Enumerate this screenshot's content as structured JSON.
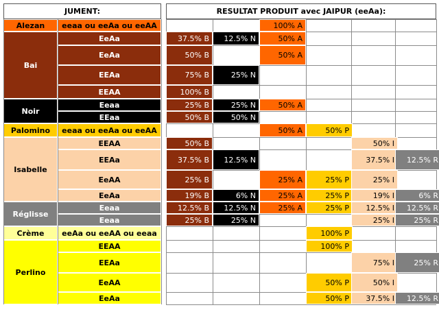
{
  "headers": {
    "left": "JUMENT:",
    "right": "RESULTAT PRODUIT avec JAIPUR (eeAa):"
  },
  "colors": {
    "alezan": "#ff6600",
    "bai": "#8b2d0c",
    "noir": "#000000",
    "palomino": "#ffcc00",
    "isabelle": "#fcd2a8",
    "reglisse": "#808080",
    "creme": "#ffff99",
    "perlino": "#ffff00",
    "pct_A": "#ff6600",
    "pct_B": "#8b2d0c",
    "pct_N": "#000000",
    "pct_P": "#ffcc00",
    "pct_I": "#fcd2a8",
    "pct_R": "#808080"
  },
  "rows": [
    {
      "name": "Alezan",
      "genotype": "eeaa ou eeAa ou eeAA",
      "group": "alezan",
      "result": [
        "",
        "",
        "100% A",
        "",
        "",
        ""
      ]
    },
    {
      "name": "Bai",
      "genotype": "EeAa",
      "group": "bai",
      "result": [
        "37.5% B",
        "12.5% N",
        "50% A",
        "",
        "",
        ""
      ]
    },
    {
      "name": "",
      "genotype": "EeAa",
      "group": "bai",
      "result": [
        "50% B",
        "",
        "50% A",
        "",
        "",
        ""
      ]
    },
    {
      "name": "",
      "genotype": "EEAa",
      "group": "bai",
      "result": [
        "75% B",
        "25% N",
        "",
        "",
        "",
        ""
      ]
    },
    {
      "name": "",
      "genotype": "EEAA",
      "group": "bai",
      "result": [
        "100% B",
        "",
        "",
        "",
        "",
        ""
      ]
    },
    {
      "name": "Noir",
      "genotype": "Eeaa",
      "group": "noir",
      "result": [
        "25% B",
        "25% N",
        "50% A",
        "",
        "",
        ""
      ]
    },
    {
      "name": "",
      "genotype": "EEaa",
      "group": "noir",
      "result": [
        "50% B",
        "50% N",
        "",
        "",
        "",
        ""
      ]
    },
    {
      "name": "Palomino",
      "genotype": "eeaa ou eeAa ou eeAA",
      "group": "palomino",
      "result": [
        "",
        "",
        "50% A",
        "50% P",
        "",
        ""
      ]
    },
    {
      "name": "Isabelle",
      "genotype": "EEAA",
      "group": "isabelle",
      "result": [
        "50% B",
        "",
        "",
        "",
        "50% I",
        ""
      ]
    },
    {
      "name": "",
      "genotype": "EEAa",
      "group": "isabelle",
      "result": [
        "37.5% B",
        "12.5% N",
        "",
        "",
        "37.5% I",
        "12.5% R"
      ]
    },
    {
      "name": "",
      "genotype": "EeAA",
      "group": "isabelle",
      "result": [
        "25% B",
        "",
        "25% A",
        "25% P",
        "25% I",
        ""
      ]
    },
    {
      "name": "",
      "genotype": "EeAa",
      "group": "isabelle",
      "result": [
        "19% B",
        "6% N",
        "25% A",
        "25% P",
        "19% I",
        "6% R"
      ]
    },
    {
      "name": "Réglisse",
      "genotype": "Eeaa",
      "group": "reglisse",
      "result": [
        "12.5% B",
        "12.5% N",
        "25% A",
        "25% P",
        "12.5% I",
        "12.5% R"
      ]
    },
    {
      "name": "",
      "genotype": "Eeaa",
      "group": "reglisse",
      "result": [
        "25% B",
        "25% N",
        "",
        "",
        "25% I",
        "25% R"
      ]
    },
    {
      "name": "Crème",
      "genotype": "eeAa ou eeAA ou eeaa",
      "group": "creme",
      "result": [
        "",
        "",
        "",
        "100% P",
        "",
        ""
      ]
    },
    {
      "name": "Perlino",
      "genotype": "EEAA",
      "group": "perlino",
      "result": [
        "",
        "",
        "",
        "100% P",
        "",
        ""
      ]
    },
    {
      "name": "",
      "genotype": "EEAa",
      "group": "perlino",
      "result": [
        "",
        "",
        "",
        "",
        "75% I",
        "25% R"
      ]
    },
    {
      "name": "",
      "genotype": "EeAA",
      "group": "perlino",
      "result": [
        "",
        "",
        "",
        "50% P",
        "50% I",
        ""
      ]
    },
    {
      "name": "",
      "genotype": "EeAa",
      "group": "perlino",
      "result": [
        "",
        "",
        "",
        "50% P",
        "37.5% I",
        "12.5% R"
      ]
    }
  ]
}
